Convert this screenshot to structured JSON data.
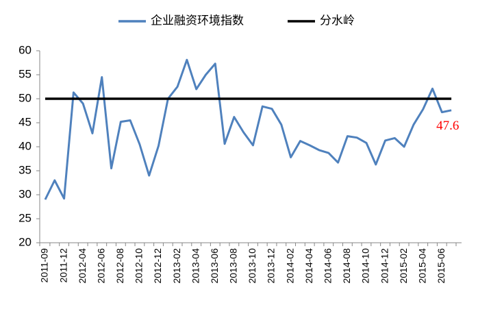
{
  "chart_data": {
    "type": "line",
    "categories": [
      "2011-09",
      null,
      "2011-12",
      null,
      "2012-04",
      null,
      "2012-06",
      null,
      "2012-08",
      null,
      "2012-10",
      null,
      "2012-12",
      null,
      "2013-02",
      null,
      "2013-04",
      null,
      "2013-06",
      null,
      "2013-08",
      null,
      "2013-10",
      null,
      "2013-12",
      null,
      "2014-02",
      null,
      "2014-04",
      null,
      "2014-06",
      null,
      "2014-08",
      null,
      "2014-10",
      null,
      "2014-12",
      null,
      "2015-02",
      null,
      "2015-04",
      null,
      "2015-06",
      null
    ],
    "series": [
      {
        "name": "企业融资环境指数",
        "color": "#4f81bd",
        "values": [
          29,
          33,
          29.2,
          51.3,
          49,
          42.8,
          54.5,
          35.5,
          45.2,
          45.5,
          40.5,
          34,
          40.2,
          50,
          52.5,
          58.1,
          52,
          55,
          57.3,
          40.6,
          46.2,
          43,
          40.3,
          48.4,
          47.9,
          44.6,
          37.8,
          41.2,
          40.3,
          39.3,
          38.7,
          36.7,
          42.2,
          41.9,
          40.8,
          36.3,
          41.3,
          41.8,
          40,
          44.6,
          47.8,
          52.1,
          47.2,
          47.6
        ]
      },
      {
        "name": "分水岭",
        "color": "#000000",
        "values": [
          50,
          50,
          50,
          50,
          50,
          50,
          50,
          50,
          50,
          50,
          50,
          50,
          50,
          50,
          50,
          50,
          50,
          50,
          50,
          50,
          50,
          50,
          50,
          50,
          50,
          50,
          50,
          50,
          50,
          50,
          50,
          50,
          50,
          50,
          50,
          50,
          50,
          50,
          50,
          50,
          50,
          50,
          50,
          50
        ]
      }
    ],
    "ylim": [
      20,
      60
    ],
    "yticks": [
      20,
      25,
      30,
      35,
      40,
      45,
      50,
      55,
      60
    ],
    "label_color": "#ff0000",
    "legend": "top"
  }
}
